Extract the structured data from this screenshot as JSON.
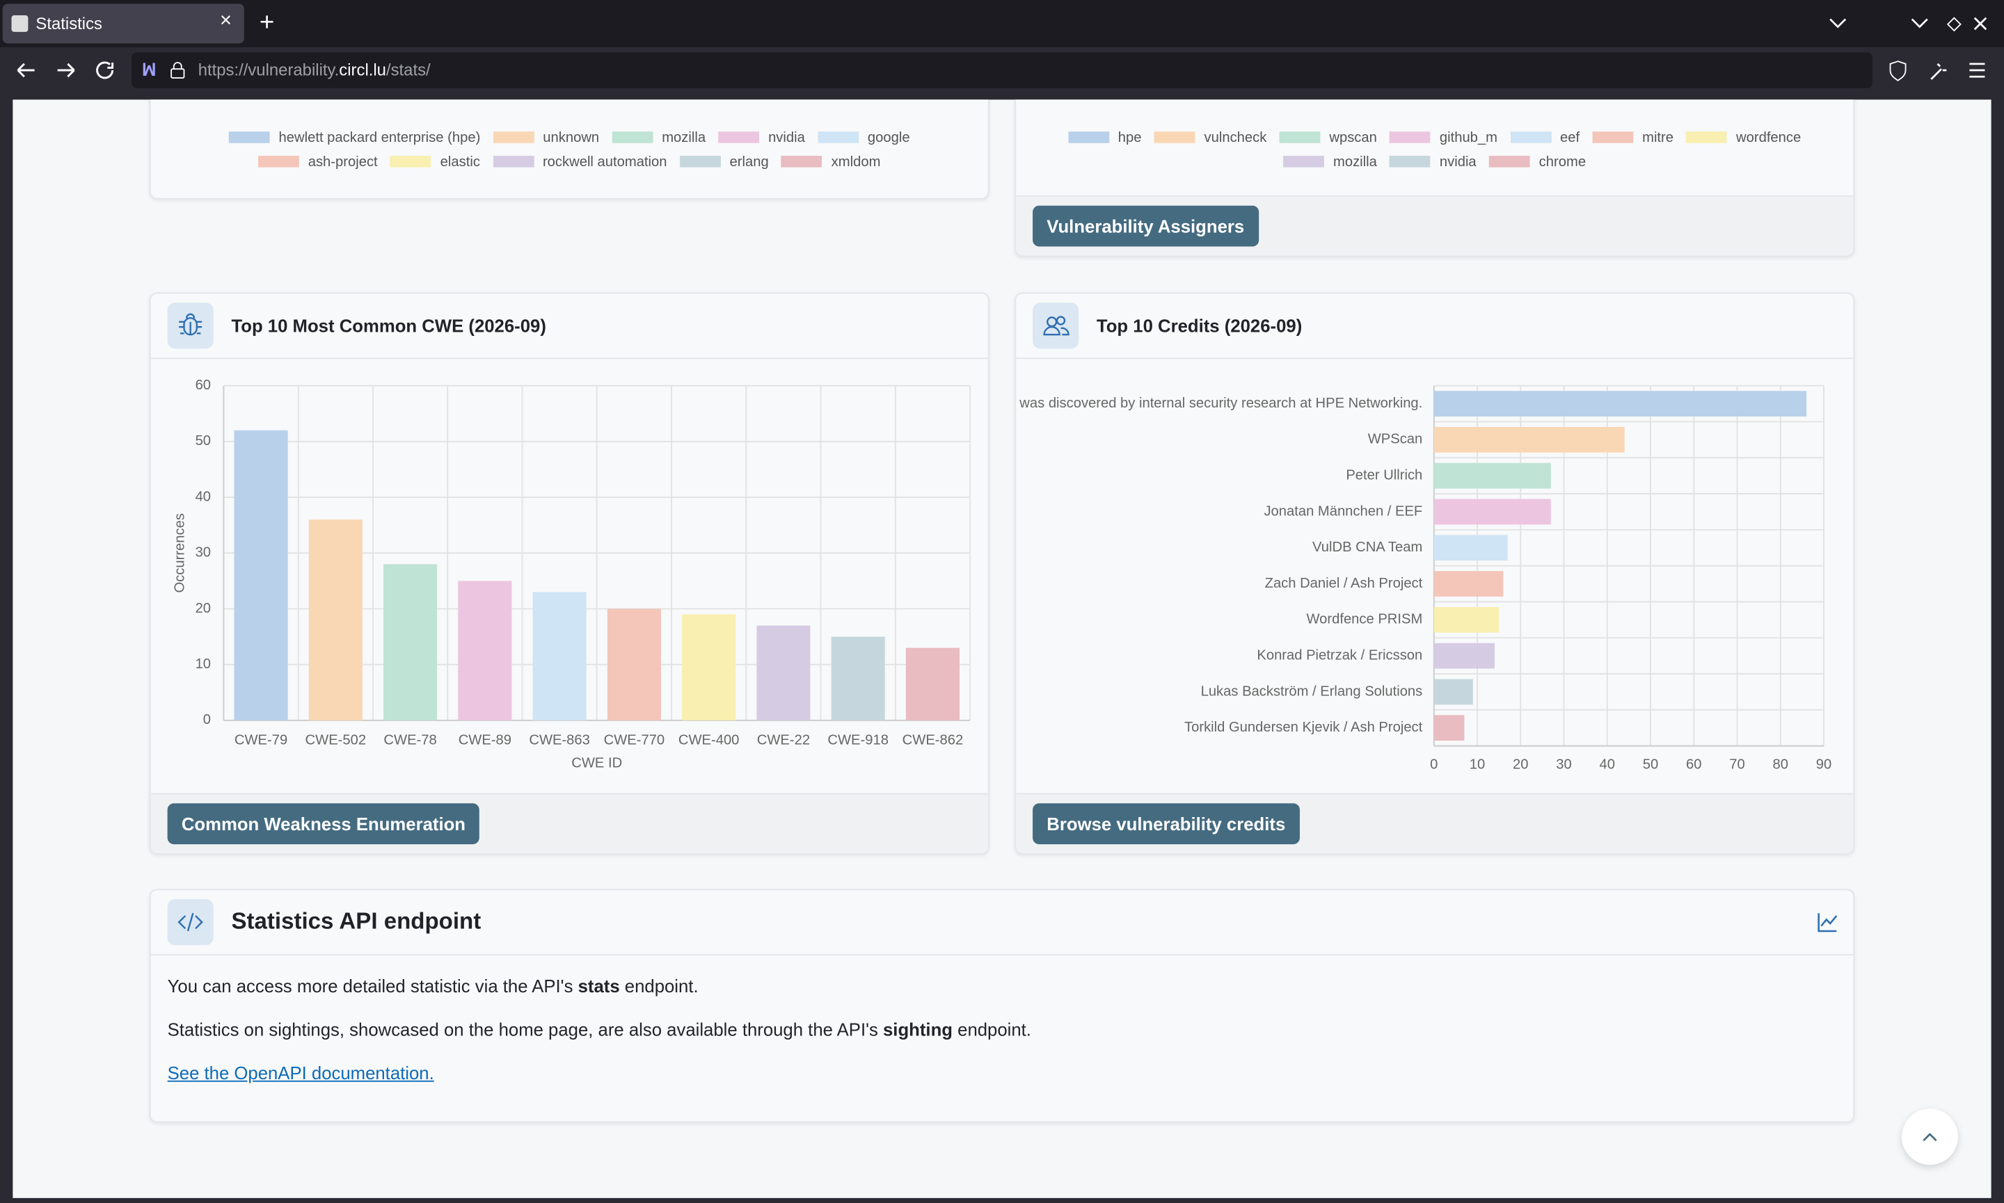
{
  "browser": {
    "tab_title": "Statistics",
    "url": {
      "scheme": "https://vulnerability.",
      "host": "circl.lu",
      "path": "/stats/"
    }
  },
  "vendors_legend": [
    [
      {
        "label": "hewlett packard enterprise (hpe)",
        "color": "#b8d0ea"
      },
      {
        "label": "unknown",
        "color": "#f9d7b5"
      },
      {
        "label": "mozilla",
        "color": "#bfe3d4"
      },
      {
        "label": "nvidia",
        "color": "#ecc6e0"
      },
      {
        "label": "google",
        "color": "#cfe4f4"
      }
    ],
    [
      {
        "label": "ash-project",
        "color": "#f3c6b9"
      },
      {
        "label": "elastic",
        "color": "#f8efb0"
      },
      {
        "label": "rockwell automation",
        "color": "#d5cce3"
      },
      {
        "label": "erlang",
        "color": "#c5d7dc"
      },
      {
        "label": "xmldom",
        "color": "#e8bcc0"
      }
    ]
  ],
  "assigners_legend": [
    [
      {
        "label": "hpe",
        "color": "#b8d0ea"
      },
      {
        "label": "vulncheck",
        "color": "#f9d7b5"
      },
      {
        "label": "wpscan",
        "color": "#bfe3d4"
      },
      {
        "label": "github_m",
        "color": "#ecc6e0"
      },
      {
        "label": "eef",
        "color": "#cfe4f4"
      },
      {
        "label": "mitre",
        "color": "#f3c6b9"
      },
      {
        "label": "wordfence",
        "color": "#f8efb0"
      }
    ],
    [
      {
        "label": "mozilla",
        "color": "#d5cce3"
      },
      {
        "label": "nvidia",
        "color": "#c5d7dc"
      },
      {
        "label": "chrome",
        "color": "#e8bcc0"
      }
    ]
  ],
  "assigners_button": "Vulnerability Assigners",
  "cwe_card": {
    "title": "Top 10 Most Common CWE (2026-09)",
    "button": "Common Weakness Enumeration",
    "chart_data": {
      "type": "bar",
      "categories": [
        "CWE-79",
        "CWE-502",
        "CWE-78",
        "CWE-89",
        "CWE-863",
        "CWE-770",
        "CWE-400",
        "CWE-22",
        "CWE-918",
        "CWE-862"
      ],
      "values": [
        52,
        36,
        28,
        25,
        23,
        20,
        19,
        17,
        15,
        13
      ],
      "colors": [
        "#b8d0ea",
        "#f9d7b5",
        "#bfe3d4",
        "#ecc6e0",
        "#cfe4f4",
        "#f3c6b9",
        "#f8efb0",
        "#d5cce3",
        "#c5d7dc",
        "#e8bcc0"
      ],
      "ylim": [
        0,
        60
      ],
      "yticks": [
        0,
        10,
        20,
        30,
        40,
        50,
        60
      ],
      "y_label": "Occurrences",
      "x_label": "CWE ID",
      "grid": true
    }
  },
  "credits_card": {
    "title": "Top 10 Credits (2026-09)",
    "button": "Browse vulnerability credits",
    "chart_data": {
      "type": "barh",
      "categories": [
        "was discovered by internal security research at HPE Networking.",
        "WPScan",
        "Peter Ullrich",
        "Jonatan Männchen / EEF",
        "VulDB CNA Team",
        "Zach Daniel / Ash Project",
        "Wordfence PRISM",
        "Konrad Pietrzak / Ericsson",
        "Lukas Backström / Erlang Solutions",
        "Torkild Gundersen Kjevik / Ash Project"
      ],
      "values": [
        86,
        44,
        27,
        27,
        17,
        16,
        15,
        14,
        9,
        7
      ],
      "colors": [
        "#b8d0ea",
        "#f9d7b5",
        "#bfe3d4",
        "#ecc6e0",
        "#cfe4f4",
        "#f3c6b9",
        "#f8efb0",
        "#d5cce3",
        "#c5d7dc",
        "#e8bcc0"
      ],
      "xlim": [
        0,
        90
      ],
      "xticks": [
        0,
        10,
        20,
        30,
        40,
        50,
        60,
        70,
        80,
        90
      ],
      "grid": true
    }
  },
  "api_card": {
    "title": "Statistics API endpoint",
    "line1": {
      "before": "You can access more detailed statistic via the API's ",
      "bold": "stats",
      "after": " endpoint."
    },
    "line2": {
      "before": "Statistics on sightings, showcased on the home page, are also available through the API's ",
      "bold": "sighting",
      "after": " endpoint."
    },
    "link": "See the OpenAPI documentation."
  }
}
